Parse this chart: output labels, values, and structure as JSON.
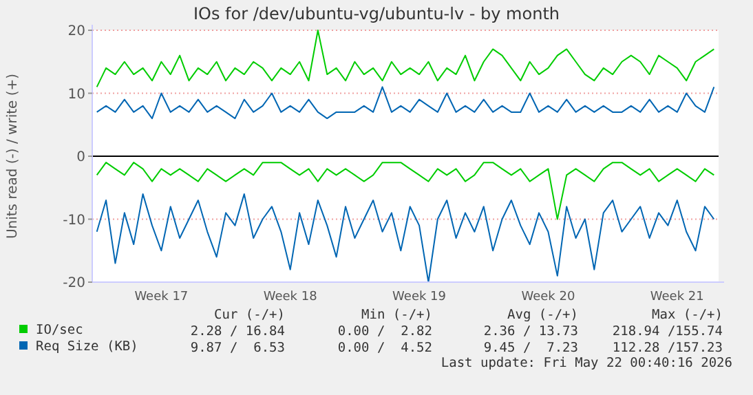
{
  "chart_data": {
    "type": "line",
    "title": "IOs for /dev/ubuntu-vg/ubuntu-lv - by month",
    "ylabel": "Units read (-) / write (+)",
    "categories": [
      null,
      null,
      null,
      null,
      null,
      null,
      null,
      "Week 17",
      null,
      null,
      null,
      null,
      null,
      null,
      null,
      null,
      null,
      null,
      null,
      null,
      null,
      "Week 18",
      null,
      null,
      null,
      null,
      null,
      null,
      null,
      null,
      null,
      null,
      null,
      null,
      null,
      "Week 19",
      null,
      null,
      null,
      null,
      null,
      null,
      null,
      null,
      null,
      null,
      null,
      null,
      null,
      "Week 20",
      null,
      null,
      null,
      null,
      null,
      null,
      null,
      null,
      null,
      null,
      null,
      null,
      null,
      "Week 21",
      null,
      null,
      null,
      null
    ],
    "ylim": [
      -20,
      20
    ],
    "yticks": [
      -20,
      -10,
      0,
      10,
      20
    ],
    "grid": "y",
    "legend": "bottom",
    "ref_lines": [
      {
        "axis": "y",
        "value": 0,
        "color": "#000000"
      }
    ],
    "series": [
      {
        "name": "IO/sec",
        "color": "#00cc00",
        "values": [
          11,
          14,
          13,
          15,
          13,
          14,
          12,
          15,
          13,
          16,
          12,
          14,
          13,
          15,
          12,
          14,
          13,
          15,
          14,
          12,
          14,
          13,
          15,
          12,
          20,
          13,
          14,
          12,
          15,
          13,
          14,
          12,
          15,
          13,
          14,
          13,
          15,
          12,
          14,
          13,
          16,
          12,
          15,
          17,
          16,
          14,
          12,
          15,
          13,
          14,
          16,
          17,
          15,
          13,
          12,
          14,
          13,
          15,
          16,
          15,
          13,
          16,
          15,
          14,
          12,
          15,
          16,
          17
        ]
      },
      {
        "color": "#00cc00",
        "values": [
          -3,
          -1,
          -2,
          -3,
          -1,
          -2,
          -4,
          -2,
          -3,
          -2,
          -3,
          -4,
          -2,
          -3,
          -4,
          -3,
          -2,
          -3,
          -1,
          -1,
          -1,
          -2,
          -3,
          -2,
          -4,
          -2,
          -3,
          -2,
          -3,
          -4,
          -3,
          -1,
          -1,
          -1,
          -2,
          -3,
          -4,
          -2,
          -3,
          -2,
          -4,
          -3,
          -1,
          -1,
          -2,
          -3,
          -2,
          -4,
          -3,
          -2,
          -10,
          -3,
          -2,
          -3,
          -4,
          -2,
          -1,
          -1,
          -2,
          -3,
          -2,
          -4,
          -3,
          -2,
          -3,
          -4,
          -2,
          -3
        ]
      },
      {
        "name": "Req Size (KB)",
        "color": "#0066b3",
        "values": [
          7,
          8,
          7,
          9,
          7,
          8,
          6,
          10,
          7,
          8,
          7,
          9,
          7,
          8,
          7,
          6,
          9,
          7,
          8,
          10,
          7,
          8,
          7,
          9,
          7,
          6,
          7,
          7,
          7,
          8,
          7,
          11,
          7,
          8,
          7,
          9,
          8,
          7,
          10,
          7,
          8,
          7,
          9,
          7,
          8,
          7,
          7,
          10,
          7,
          8,
          7,
          9,
          7,
          8,
          7,
          8,
          7,
          7,
          8,
          7,
          9,
          7,
          8,
          7,
          10,
          8,
          7,
          11
        ]
      },
      {
        "color": "#0066b3",
        "values": [
          -12,
          -7,
          -17,
          -9,
          -14,
          -6,
          -11,
          -15,
          -8,
          -13,
          -10,
          -7,
          -12,
          -16,
          -9,
          -11,
          -6,
          -13,
          -10,
          -8,
          -12,
          -18,
          -9,
          -14,
          -7,
          -11,
          -16,
          -8,
          -13,
          -10,
          -7,
          -12,
          -9,
          -15,
          -8,
          -11,
          -20,
          -10,
          -7,
          -13,
          -9,
          -12,
          -8,
          -15,
          -10,
          -7,
          -11,
          -14,
          -9,
          -12,
          -19,
          -8,
          -13,
          -10,
          -18,
          -9,
          -7,
          -12,
          -10,
          -8,
          -13,
          -9,
          -11,
          -7,
          -12,
          -15,
          -8,
          -10
        ]
      }
    ],
    "annotations": [
      "Cur (-/+)",
      "Min (-/+)",
      "Avg (-/+)",
      "Max (-/+)",
      "2.28 / 16.84",
      "0.00 /  2.82",
      "2.36 / 13.73",
      "218.94 /155.74",
      "9.87 /  6.53",
      "0.00 /  4.52",
      "9.45 /  7.23",
      "112.28 /157.23",
      "Last update: Fri May 22 00:40:16 2026"
    ]
  }
}
